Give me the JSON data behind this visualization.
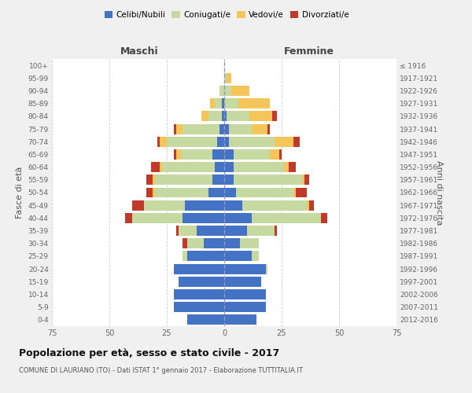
{
  "age_groups": [
    "0-4",
    "5-9",
    "10-14",
    "15-19",
    "20-24",
    "25-29",
    "30-34",
    "35-39",
    "40-44",
    "45-49",
    "50-54",
    "55-59",
    "60-64",
    "65-69",
    "70-74",
    "75-79",
    "80-84",
    "85-89",
    "90-94",
    "95-99",
    "100+"
  ],
  "birth_years": [
    "2012-2016",
    "2007-2011",
    "2002-2006",
    "1997-2001",
    "1992-1996",
    "1987-1991",
    "1982-1986",
    "1977-1981",
    "1972-1976",
    "1967-1971",
    "1962-1966",
    "1957-1961",
    "1952-1956",
    "1947-1951",
    "1942-1946",
    "1937-1941",
    "1932-1936",
    "1927-1931",
    "1922-1926",
    "1917-1921",
    "≤ 1916"
  ],
  "males": {
    "celibi": [
      16,
      22,
      22,
      20,
      22,
      16,
      9,
      12,
      18,
      17,
      7,
      5,
      4,
      5,
      3,
      2,
      1,
      1,
      0,
      0,
      0
    ],
    "coniugati": [
      0,
      0,
      0,
      0,
      0,
      2,
      7,
      8,
      22,
      18,
      23,
      25,
      23,
      14,
      22,
      16,
      6,
      3,
      2,
      0,
      0
    ],
    "vedovi": [
      0,
      0,
      0,
      0,
      0,
      0,
      0,
      0,
      0,
      0,
      1,
      1,
      1,
      2,
      3,
      3,
      3,
      2,
      0,
      0,
      0
    ],
    "divorziati": [
      0,
      0,
      0,
      0,
      0,
      0,
      2,
      1,
      3,
      5,
      3,
      3,
      4,
      1,
      1,
      1,
      0,
      0,
      0,
      0,
      0
    ]
  },
  "females": {
    "nubili": [
      14,
      18,
      18,
      16,
      18,
      12,
      7,
      10,
      12,
      8,
      5,
      4,
      4,
      4,
      2,
      2,
      1,
      0,
      0,
      0,
      0
    ],
    "coniugate": [
      0,
      0,
      0,
      0,
      1,
      3,
      8,
      12,
      30,
      28,
      25,
      30,
      22,
      16,
      20,
      10,
      10,
      6,
      3,
      1,
      0
    ],
    "vedove": [
      0,
      0,
      0,
      0,
      0,
      0,
      0,
      0,
      0,
      1,
      1,
      1,
      2,
      4,
      8,
      7,
      10,
      14,
      8,
      2,
      0
    ],
    "divorziate": [
      0,
      0,
      0,
      0,
      0,
      0,
      0,
      1,
      3,
      2,
      5,
      2,
      3,
      1,
      3,
      1,
      2,
      0,
      0,
      0,
      0
    ]
  },
  "colors": {
    "celibi": "#4472c4",
    "coniugati": "#c5d9a0",
    "vedovi": "#f5c55a",
    "divorziati": "#c0392b"
  },
  "title": "Popolazione per età, sesso e stato civile - 2017",
  "subtitle": "COMUNE DI LAURIANO (TO) - Dati ISTAT 1° gennaio 2017 - Elaborazione TUTTITALIA.IT",
  "ylabel_left": "Fasce di età",
  "ylabel_right": "Anni di nascita",
  "xlabel_left": "Maschi",
  "xlabel_right": "Femmine",
  "xlim": 75,
  "legend_labels": [
    "Celibi/Nubili",
    "Coniugati/e",
    "Vedovi/e",
    "Divorziati/e"
  ],
  "background_color": "#f0f0f0",
  "plot_bg_color": "#ffffff"
}
